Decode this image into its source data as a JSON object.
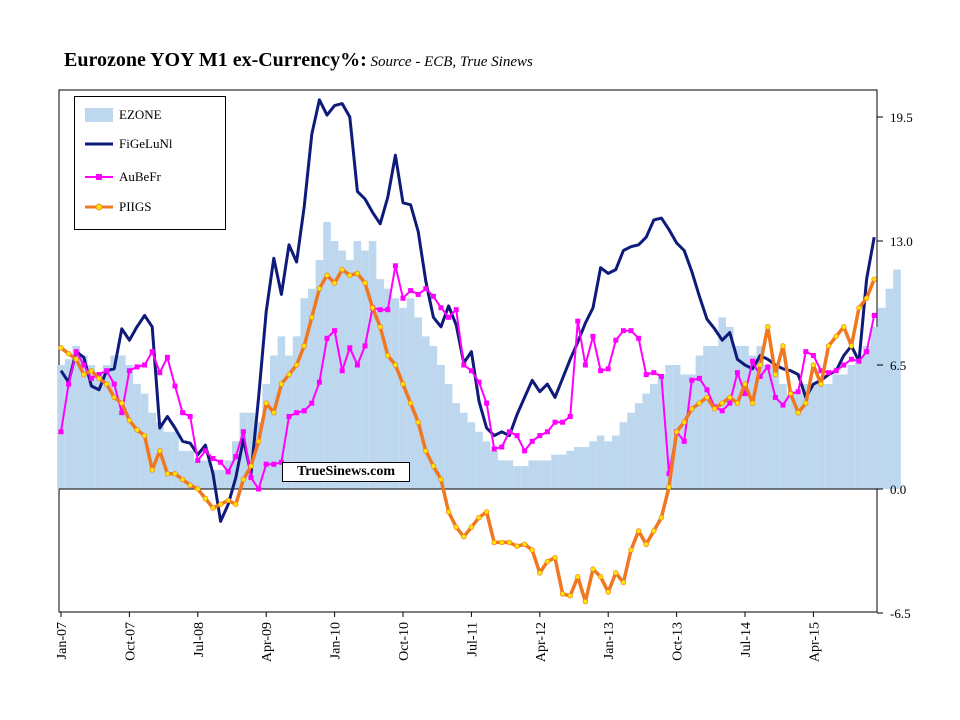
{
  "title": {
    "main": "Eurozone YOY M1 ex-Currency%:",
    "source": " Source - ECB, True Sinews"
  },
  "watermark": "TrueSinews.com",
  "chart_data": {
    "type": "line",
    "title": "Eurozone YOY M1 ex-Currency%",
    "x_start": "2007-01",
    "x_tick_labels": [
      "Jan-07",
      "Oct-07",
      "Jul-08",
      "Apr-09",
      "Jan-10",
      "Oct-10",
      "Jul-11",
      "Apr-12",
      "Jan-13",
      "Oct-13",
      "Jul-14",
      "Apr-15"
    ],
    "y_tick_labels": [
      "19.5",
      "13.0",
      "6.5",
      "0.0",
      "-6.5"
    ],
    "ylim": [
      -6.5,
      19.5
    ],
    "y_ticks": [
      19.5,
      13.0,
      6.5,
      0.0,
      -6.5
    ],
    "y_axis_side": "right",
    "legend_position": "top-left",
    "grid": false,
    "series": [
      {
        "name": "EZONE",
        "style": "bars",
        "color": "#bdd7ee",
        "values": [
          6.5,
          6.8,
          7.5,
          7.0,
          6.5,
          6.0,
          6.5,
          7.0,
          7.0,
          6.5,
          5.5,
          5.0,
          4.0,
          3.5,
          3.0,
          3.0,
          2.0,
          2.0,
          1.5,
          1.5,
          1.0,
          1.0,
          1.5,
          2.5,
          4.0,
          4.0,
          3.5,
          5.5,
          7.0,
          8.0,
          7.0,
          8.0,
          10.0,
          10.5,
          12.0,
          14.0,
          13.0,
          12.5,
          12.0,
          13.0,
          12.5,
          13.0,
          11.0,
          10.5,
          10.0,
          9.5,
          10.0,
          9.0,
          8.0,
          7.5,
          6.5,
          5.5,
          4.5,
          4.0,
          3.5,
          3.0,
          2.5,
          2.0,
          1.5,
          1.5,
          1.2,
          1.2,
          1.5,
          1.5,
          1.5,
          1.8,
          1.8,
          2.0,
          2.2,
          2.2,
          2.5,
          2.8,
          2.5,
          2.8,
          3.5,
          4.0,
          4.5,
          5.0,
          5.5,
          6.0,
          6.5,
          6.5,
          6.0,
          6.0,
          7.0,
          7.5,
          7.5,
          9.0,
          8.5,
          7.5,
          7.5,
          7.0,
          7.5,
          6.5,
          6.5,
          5.5,
          5.0,
          5.0,
          5.5,
          5.5,
          5.5,
          5.5,
          6.0,
          6.0,
          6.5,
          7.0,
          7.5,
          8.5,
          9.5,
          10.5,
          11.5
        ]
      },
      {
        "name": "FiGeLuNl",
        "style": "line",
        "color": "#0f1b7a",
        "values": [
          6.2,
          5.6,
          7.2,
          6.9,
          5.4,
          5.2,
          6.2,
          6.3,
          8.4,
          7.8,
          8.5,
          9.1,
          8.5,
          3.2,
          3.8,
          3.2,
          2.5,
          2.4,
          1.8,
          2.3,
          0.8,
          -1.7,
          -0.8,
          0.6,
          2.6,
          0.8,
          4.8,
          9.3,
          12.1,
          10.2,
          12.8,
          11.9,
          14.8,
          18.6,
          20.4,
          19.6,
          20.1,
          20.2,
          19.5,
          15.6,
          15.2,
          14.5,
          13.9,
          15.3,
          17.5,
          15.0,
          14.9,
          13.5,
          10.9,
          9.0,
          8.5,
          9.6,
          8.6,
          6.6,
          7.2,
          4.6,
          3.2,
          2.8,
          3.0,
          2.8,
          3.9,
          4.8,
          5.7,
          5.1,
          5.5,
          4.8,
          5.8,
          6.8,
          7.7,
          8.7,
          9.5,
          11.6,
          11.3,
          11.5,
          12.5,
          12.7,
          12.8,
          13.2,
          14.1,
          14.2,
          13.6,
          12.9,
          12.5,
          11.4,
          10.1,
          8.9,
          8.4,
          7.8,
          8.2,
          6.8,
          6.5,
          6.3,
          7.0,
          6.8,
          6.5,
          6.3,
          6.2,
          6.0,
          4.8,
          5.5,
          5.7,
          6.0,
          6.2,
          7.0,
          7.5,
          6.7,
          11.0,
          13.2
        ]
      },
      {
        "name": "AuBeFr",
        "style": "line-markers",
        "color": "#ff00ff",
        "values": [
          3.0,
          5.5,
          7.2,
          6.5,
          5.8,
          6.0,
          6.2,
          5.5,
          4.0,
          6.2,
          6.4,
          6.5,
          7.2,
          6.1,
          6.9,
          5.4,
          4.0,
          3.8,
          1.5,
          2.0,
          1.6,
          1.4,
          0.9,
          1.7,
          3.0,
          0.6,
          0.0,
          1.3,
          1.3,
          1.4,
          3.8,
          4.0,
          4.1,
          4.5,
          5.6,
          7.9,
          8.3,
          6.2,
          7.4,
          6.5,
          7.5,
          9.5,
          9.4,
          9.4,
          11.7,
          10.0,
          10.4,
          10.2,
          10.5,
          10.1,
          9.5,
          9.0,
          9.4,
          6.5,
          6.2,
          5.6,
          4.5,
          2.1,
          2.2,
          3.0,
          2.8,
          2.0,
          2.5,
          2.8,
          3.0,
          3.5,
          3.5,
          3.8,
          8.8,
          6.5,
          8.0,
          6.2,
          6.3,
          7.8,
          8.3,
          8.3,
          7.9,
          6.0,
          6.1,
          5.9,
          0.8,
          3.0,
          2.5,
          5.7,
          5.8,
          5.2,
          4.3,
          4.1,
          4.5,
          6.1,
          5.0,
          6.7,
          5.9,
          6.4,
          4.8,
          4.4,
          5.0,
          5.1,
          7.2,
          7.0,
          6.2,
          6.1,
          6.2,
          6.5,
          6.8,
          6.7,
          7.2,
          9.1
        ]
      },
      {
        "name": "PIIGS",
        "style": "line-markers",
        "color": "#f07820",
        "marker_color": "#ffe600",
        "values": [
          7.4,
          7.1,
          6.8,
          6.0,
          6.2,
          5.8,
          5.5,
          4.8,
          4.5,
          3.6,
          3.1,
          2.8,
          1.0,
          2.0,
          0.8,
          0.8,
          0.5,
          0.2,
          0.0,
          -0.5,
          -1.0,
          -0.8,
          -0.6,
          -0.8,
          0.5,
          1.2,
          2.5,
          4.5,
          4.0,
          5.5,
          6.0,
          6.5,
          7.5,
          9.0,
          10.5,
          11.2,
          10.8,
          11.5,
          11.2,
          11.3,
          10.8,
          9.5,
          8.5,
          7.0,
          6.5,
          5.5,
          4.5,
          3.5,
          2.0,
          1.2,
          0.5,
          -1.2,
          -2.0,
          -2.5,
          -2.0,
          -1.5,
          -1.2,
          -2.8,
          -2.8,
          -2.8,
          -3.0,
          -2.9,
          -3.2,
          -4.4,
          -3.8,
          -3.6,
          -5.5,
          -5.6,
          -4.6,
          -5.9,
          -4.2,
          -4.6,
          -5.4,
          -4.4,
          -4.9,
          -3.2,
          -2.2,
          -2.9,
          -2.2,
          -1.5,
          0.1,
          3.0,
          3.5,
          4.2,
          4.5,
          4.8,
          4.2,
          4.5,
          4.8,
          4.5,
          5.5,
          4.5,
          6.5,
          8.5,
          6.0,
          7.5,
          5.0,
          4.0,
          4.5,
          6.5,
          5.5,
          7.5,
          8.0,
          8.5,
          7.5,
          9.5,
          10.0,
          11.0
        ]
      }
    ]
  }
}
